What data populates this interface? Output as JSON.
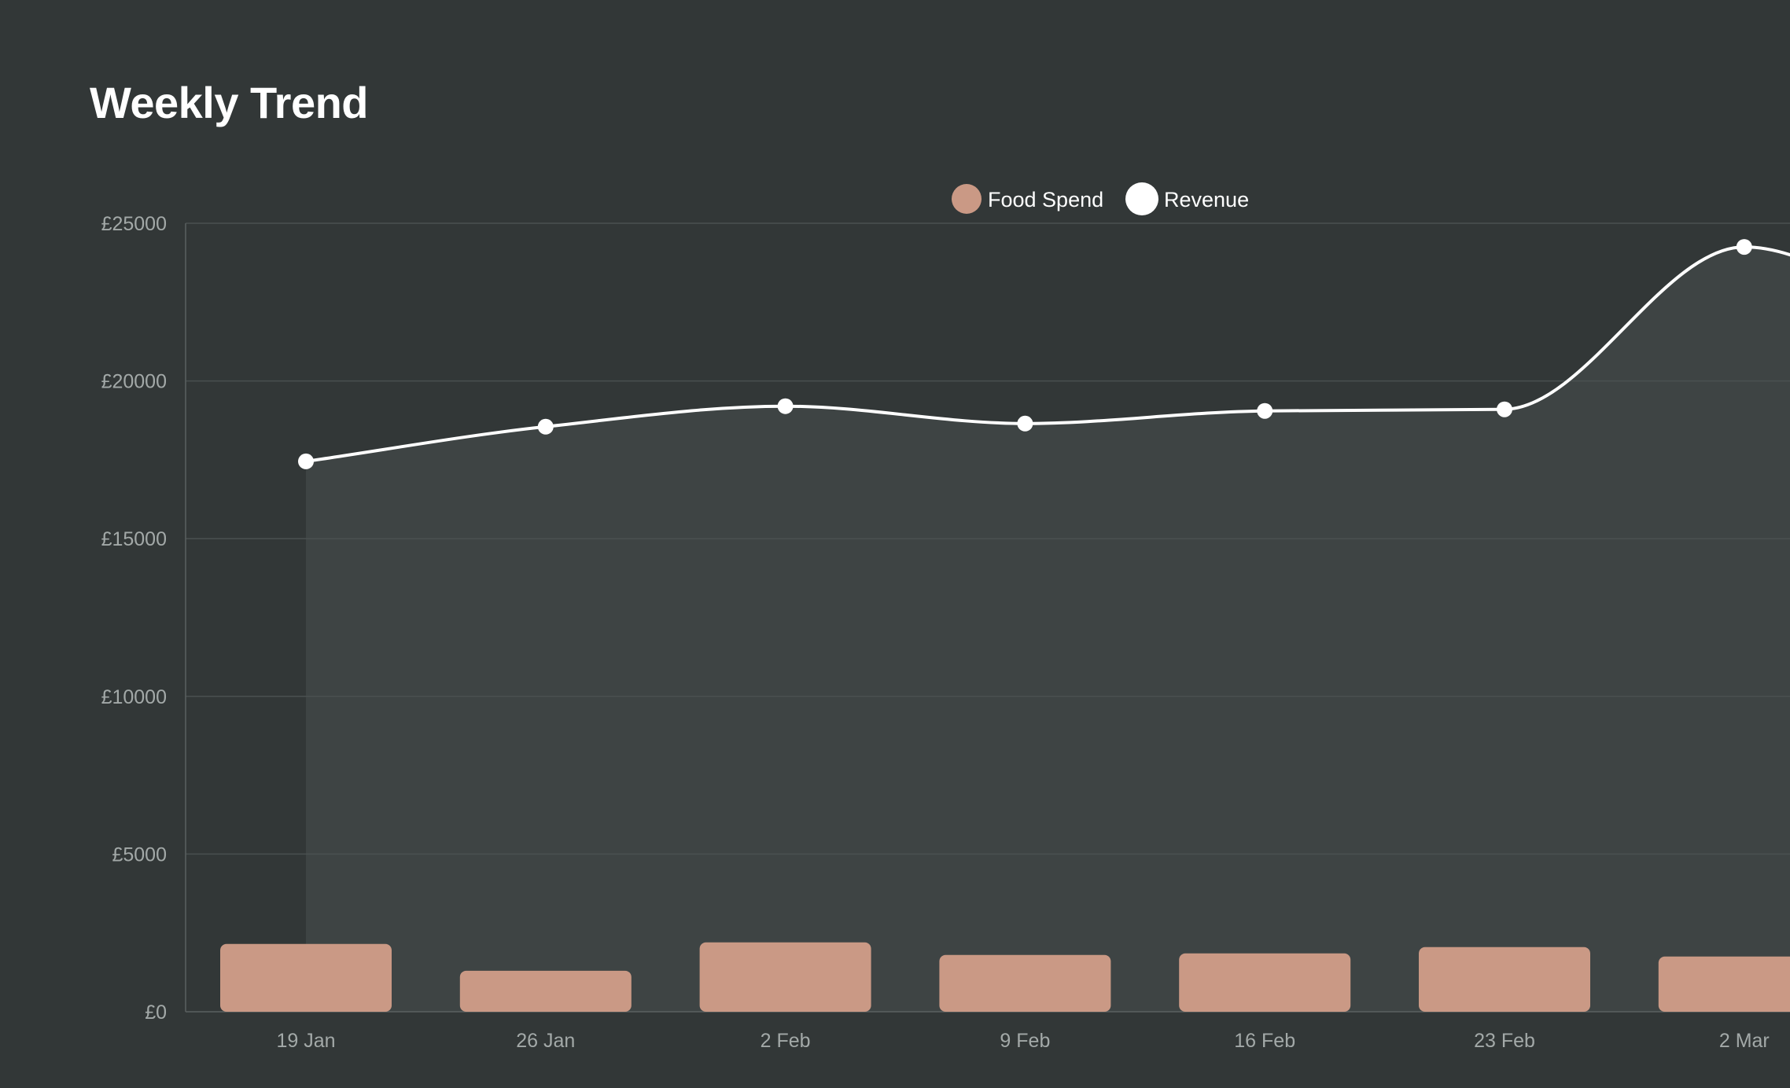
{
  "page": {
    "title": "Weekly Trend"
  },
  "colors": {
    "background": "#323737",
    "plot_area_fill": "#3e4444",
    "food_spend": "#ca9985",
    "revenue": "#ffffff",
    "grid": "#4a5050",
    "axis_text": "#a3a9a8"
  },
  "chart_data": {
    "type": "bar",
    "title": "Weekly Trend",
    "xlabel": "",
    "ylabel": "",
    "categories": [
      "19 Jan",
      "26 Jan",
      "2 Feb",
      "9 Feb",
      "16 Feb",
      "23 Feb",
      "2 Mar"
    ],
    "series": [
      {
        "name": "Food Spend",
        "type": "bar",
        "color": "#ca9985",
        "values": [
          2150,
          1300,
          2200,
          1800,
          1850,
          2050,
          1750
        ]
      },
      {
        "name": "Revenue",
        "type": "line",
        "color": "#ffffff",
        "values": [
          17450,
          18550,
          19200,
          18650,
          19050,
          19100,
          24250
        ]
      }
    ],
    "y_ticks": [
      "£0",
      "£5000",
      "£10000",
      "£15000",
      "£20000",
      "£25000"
    ],
    "y_tick_values": [
      0,
      5000,
      10000,
      15000,
      20000,
      25000
    ],
    "ylim": [
      0,
      25000
    ],
    "grid": true,
    "legend_position": "top-center",
    "legend_icon": "circle"
  }
}
